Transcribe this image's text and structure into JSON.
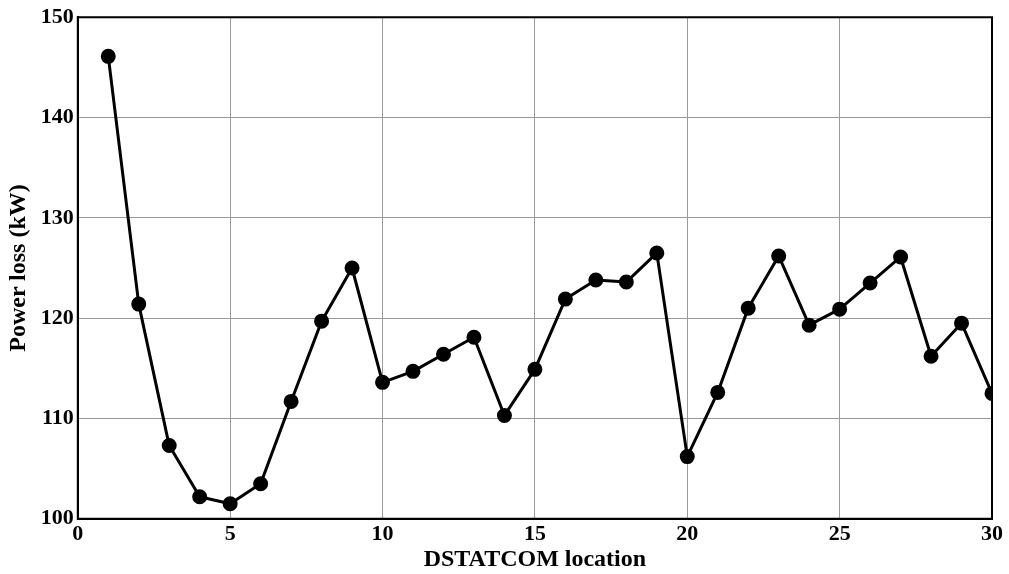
{
  "chart_data": {
    "type": "line",
    "xlabel": "DSTATCOM location",
    "ylabel": "Power loss (kW)",
    "x": [
      1,
      2,
      3,
      4,
      5,
      6,
      7,
      8,
      9,
      10,
      11,
      12,
      13,
      14,
      15,
      16,
      17,
      18,
      19,
      20,
      21,
      22,
      23,
      24,
      25,
      26,
      27,
      28,
      29,
      30
    ],
    "series": [
      {
        "color": "#000000",
        "values": [
          146.1,
          121.4,
          107.3,
          102.2,
          101.5,
          103.5,
          111.7,
          119.7,
          125.0,
          113.6,
          114.7,
          116.4,
          118.1,
          110.3,
          114.9,
          121.9,
          123.8,
          123.6,
          126.5,
          106.2,
          112.6,
          121.0,
          126.2,
          119.3,
          120.9,
          123.5,
          126.1,
          116.2,
          119.5,
          112.5
        ]
      }
    ],
    "xlim": [
      0,
      30
    ],
    "xticks": [
      0,
      5,
      10,
      15,
      20,
      25,
      30
    ],
    "ylim": [
      100,
      150
    ],
    "yticks": [
      100,
      110,
      120,
      130,
      140,
      150
    ],
    "grid": true,
    "marker": "circle",
    "line_style": "solid"
  }
}
